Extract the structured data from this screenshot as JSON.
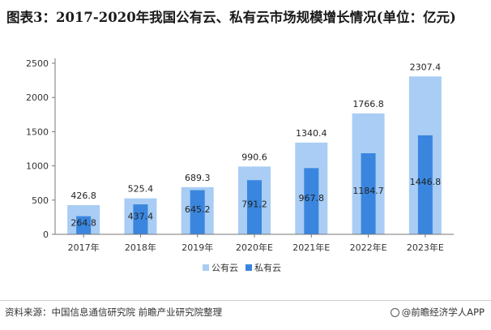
{
  "title": "图表3：2017-2020年我国公有云、私有云市场规模增长情况(单位：亿元)",
  "source": "资料来源：中国信息通信研究院 前瞻产业研究院整理",
  "brand": "@前瞻经济学人APP",
  "colors": {
    "public": "#a9cdf4",
    "private": "#3a86df",
    "axis": "#777777"
  },
  "chart_data": {
    "type": "bar",
    "categories": [
      "2017年",
      "2018年",
      "2019年",
      "2020年E",
      "2021年E",
      "2022年E",
      "2023年E"
    ],
    "series": [
      {
        "name": "公有云",
        "values": [
          426.8,
          525.4,
          689.3,
          990.6,
          1340.4,
          1766.8,
          2307.4
        ]
      },
      {
        "name": "私有云",
        "values": [
          264.8,
          437.4,
          645.2,
          791.2,
          967.8,
          1184.7,
          1446.8
        ]
      }
    ],
    "yticks": [
      0,
      500,
      1000,
      1500,
      2000,
      2500
    ],
    "ylim": [
      0,
      2500
    ],
    "legend_position": "bottom-center",
    "grid": false
  }
}
